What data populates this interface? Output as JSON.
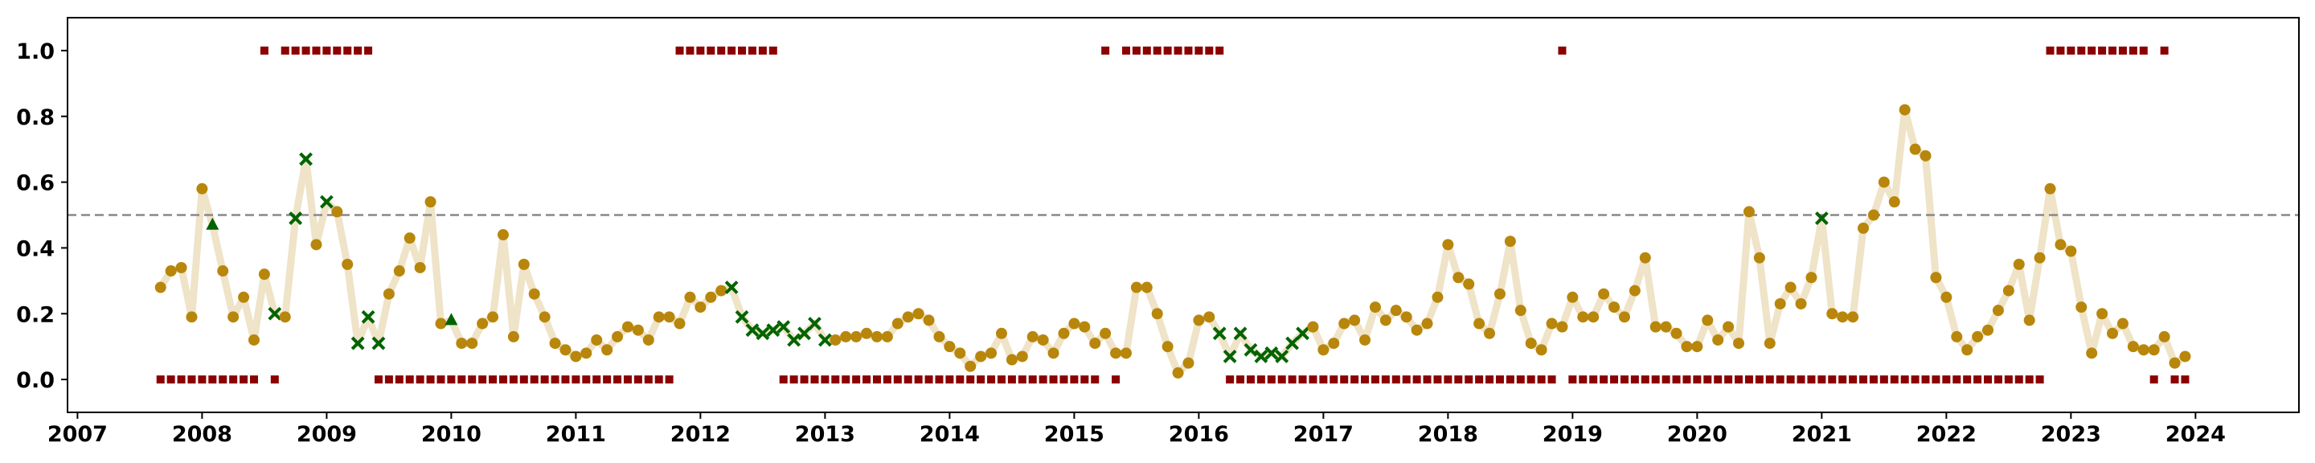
{
  "chart_data": {
    "type": "scatter",
    "title": "",
    "xlabel": "",
    "ylabel": "",
    "xlim": [
      2006.92,
      2024.83
    ],
    "ylim": [
      -0.1,
      1.1
    ],
    "x_ticks": [
      "2007",
      "2008",
      "2009",
      "2010",
      "2011",
      "2012",
      "2013",
      "2014",
      "2015",
      "2016",
      "2017",
      "2018",
      "2019",
      "2020",
      "2021",
      "2022",
      "2023",
      "2024"
    ],
    "y_ticks": [
      "0.0",
      "0.2",
      "0.4",
      "0.6",
      "0.8",
      "1.0"
    ],
    "threshold": 0.5,
    "grid": false,
    "legend": "none",
    "colors": {
      "line": "#efe3c8",
      "circle": "#b8860b",
      "cross": "#006400",
      "triangle": "#006400",
      "square": "#8b0000",
      "threshold": "#888888"
    },
    "start": "2007-09",
    "values": [
      0.28,
      0.33,
      0.34,
      0.19,
      0.58,
      0.47,
      0.33,
      0.19,
      0.25,
      0.12,
      0.32,
      0.2,
      0.19,
      0.49,
      0.67,
      0.41,
      0.54,
      0.51,
      0.35,
      0.11,
      0.19,
      0.11,
      0.26,
      0.33,
      0.43,
      0.34,
      0.54,
      0.17,
      0.18,
      0.11,
      0.11,
      0.17,
      0.19,
      0.44,
      0.13,
      0.35,
      0.26,
      0.19,
      0.11,
      0.09,
      0.07,
      0.08,
      0.12,
      0.09,
      0.13,
      0.16,
      0.15,
      0.12,
      0.19,
      0.19,
      0.17,
      0.25,
      0.22,
      0.25,
      0.27,
      0.28,
      0.19,
      0.15,
      0.14,
      0.15,
      0.16,
      0.12,
      0.14,
      0.17,
      0.12,
      0.12,
      0.13,
      0.13,
      0.14,
      0.13,
      0.13,
      0.17,
      0.19,
      0.2,
      0.18,
      0.13,
      0.1,
      0.08,
      0.04,
      0.07,
      0.08,
      0.14,
      0.06,
      0.07,
      0.13,
      0.12,
      0.08,
      0.14,
      0.17,
      0.16,
      0.11,
      0.14,
      0.08,
      0.08,
      0.28,
      0.28,
      0.2,
      0.1,
      0.02,
      0.05,
      0.18,
      0.19,
      0.14,
      0.07,
      0.14,
      0.09,
      0.07,
      0.08,
      0.07,
      0.11,
      0.14,
      0.16,
      0.09,
      0.11,
      0.17,
      0.18,
      0.12,
      0.22,
      0.18,
      0.21,
      0.19,
      0.15,
      0.17,
      0.25,
      0.41,
      0.31,
      0.29,
      0.17,
      0.14,
      0.26,
      0.42,
      0.21,
      0.11,
      0.09,
      0.17,
      0.16,
      0.25,
      0.19,
      0.19,
      0.26,
      0.22,
      0.19,
      0.27,
      0.37,
      0.16,
      0.16,
      0.14,
      0.1,
      0.1,
      0.18,
      0.12,
      0.16,
      0.11,
      0.51,
      0.37,
      0.11,
      0.23,
      0.28,
      0.23,
      0.31,
      0.49,
      0.2,
      0.19,
      0.19,
      0.46,
      0.5,
      0.6,
      0.54,
      0.82,
      0.7,
      0.68,
      0.31,
      0.25,
      0.13,
      0.09,
      0.13,
      0.15,
      0.21,
      0.27,
      0.35,
      0.18,
      0.37,
      0.58,
      0.41,
      0.39,
      0.22,
      0.08,
      0.2,
      0.14,
      0.17,
      0.1,
      0.09,
      0.09,
      0.13,
      0.05,
      0.07
    ],
    "markers": "ooooo^oooooxoxxoxooxxxoooooo^ooooooooooooooooooooooooooxxxxxxxxxxoooooooooooooooooooooooooooooooooooooxxxxxxxxxoooooooooooooooooooooooooooooooooooooooooooooooooxoooooooooooooooooooooooooooooooooooo^oooooooooooooo^^^^^^oooooooooooooooxxxxxxxxxxxoxoo",
    "squares_at_1": [
      "2008-07",
      "2008-09",
      "2008-10",
      "2008-11",
      "2008-12",
      "2009-01",
      "2009-02",
      "2009-03",
      "2009-04",
      "2009-05",
      "2011-11",
      "2011-12",
      "2012-01",
      "2012-02",
      "2012-03",
      "2012-04",
      "2012-05",
      "2012-06",
      "2012-07",
      "2012-08",
      "2015-04",
      "2015-06",
      "2015-07",
      "2015-08",
      "2015-09",
      "2015-10",
      "2015-11",
      "2015-12",
      "2016-01",
      "2016-02",
      "2016-03",
      "2018-12",
      "2022-11",
      "2022-12",
      "2023-01",
      "2023-02",
      "2023-03",
      "2023-04",
      "2023-05",
      "2023-06",
      "2023-07",
      "2023-08",
      "2023-10"
    ],
    "squares_at_0_ranges": [
      [
        "2007-09",
        "2008-06"
      ],
      [
        "2008-08",
        "2008-08"
      ],
      [
        "2009-06",
        "2011-10"
      ],
      [
        "2012-09",
        "2015-03"
      ],
      [
        "2015-05",
        "2015-05"
      ],
      [
        "2016-04",
        "2018-11"
      ],
      [
        "2019-01",
        "2022-10"
      ],
      [
        "2023-09",
        "2023-09"
      ],
      [
        "2023-11",
        "2023-12"
      ]
    ]
  }
}
